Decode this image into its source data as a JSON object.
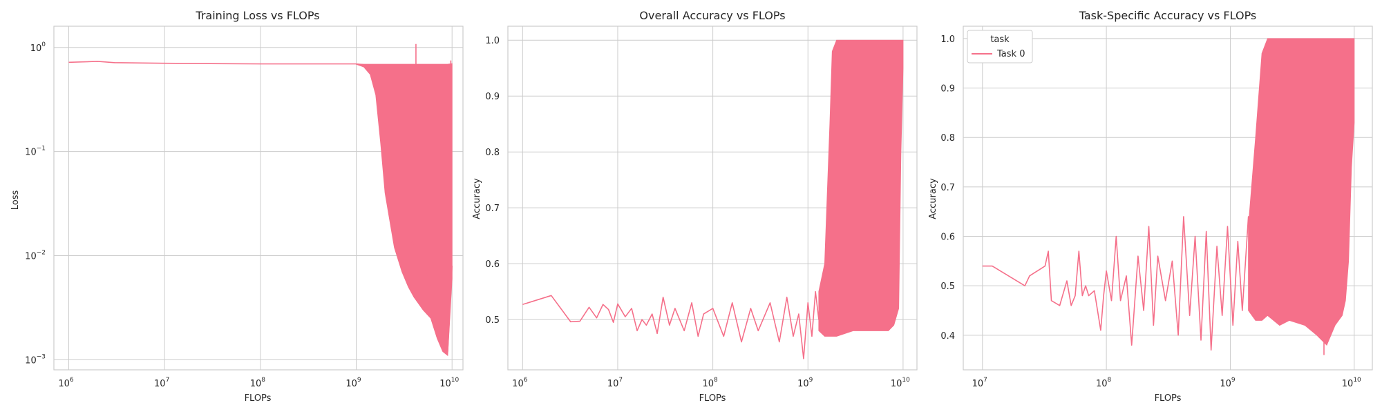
{
  "chart_data": [
    {
      "type": "line",
      "title": "Training Loss vs FLOPs",
      "xlabel": "FLOPs",
      "ylabel": "Loss",
      "xscale": "log",
      "yscale": "log",
      "xlim": [
        700000,
        13000000000
      ],
      "ylim": [
        0.0008,
        1.6
      ],
      "xticks": [
        {
          "value": 1000000,
          "base": "10",
          "exp": "6"
        },
        {
          "value": 10000000,
          "base": "10",
          "exp": "7"
        },
        {
          "value": 100000000,
          "base": "10",
          "exp": "8"
        },
        {
          "value": 1000000000,
          "base": "10",
          "exp": "9"
        },
        {
          "value": 10000000000,
          "base": "10",
          "exp": "10"
        }
      ],
      "yticks": [
        {
          "value": 0.001,
          "base": "10",
          "exp": "−3"
        },
        {
          "value": 0.01,
          "base": "10",
          "exp": "−2"
        },
        {
          "value": 0.1,
          "base": "10",
          "exp": "−1"
        },
        {
          "value": 1,
          "base": "10",
          "exp": "0"
        }
      ],
      "grid": true,
      "color": "#f5708a",
      "series": [
        {
          "x": [
            1000000,
            2000000,
            3000000,
            5000000,
            10000000,
            30000000,
            100000000,
            300000000,
            1000000000,
            1200000000,
            1400000000,
            1600000000,
            2000000000,
            2500000000,
            3000000000,
            4000000000,
            5000000000,
            6000000000,
            7000000000,
            8000000000,
            9000000000,
            10000000000
          ],
          "y": [
            0.72,
            0.735,
            0.715,
            0.71,
            0.705,
            0.7,
            0.695,
            0.695,
            0.695,
            0.68,
            0.62,
            0.42,
            0.18,
            0.06,
            0.025,
            0.012,
            0.008,
            0.005,
            0.003,
            0.0018,
            0.0012,
            0.008
          ]
        }
      ],
      "band": {
        "x": [
          1000000000,
          1200000000,
          1400000000,
          1600000000,
          1800000000,
          2000000000,
          2500000000,
          3000000000,
          3500000000,
          4000000000,
          5000000000,
          6000000000,
          7000000000,
          8000000000,
          9000000000,
          10000000000
        ],
        "ytop": [
          0.695,
          0.69,
          0.69,
          0.69,
          0.69,
          0.69,
          0.69,
          0.69,
          0.69,
          0.69,
          0.69,
          0.69,
          0.69,
          0.69,
          0.69,
          0.7
        ],
        "ybottom": [
          0.69,
          0.65,
          0.55,
          0.35,
          0.12,
          0.04,
          0.012,
          0.007,
          0.005,
          0.004,
          0.003,
          0.0025,
          0.0016,
          0.0012,
          0.0011,
          0.006
        ]
      },
      "spikes": [
        {
          "x": 4200000000,
          "y": 1.08
        },
        {
          "x": 9700000000,
          "y": 0.75
        }
      ]
    },
    {
      "type": "line",
      "title": "Overall Accuracy vs FLOPs",
      "xlabel": "FLOPs",
      "ylabel": "Accuracy",
      "xscale": "log",
      "yscale": "linear",
      "xlim": [
        700000,
        14000000000
      ],
      "ylim": [
        0.41,
        1.025
      ],
      "xticks": [
        {
          "value": 1000000,
          "base": "10",
          "exp": "6"
        },
        {
          "value": 10000000,
          "base": "10",
          "exp": "7"
        },
        {
          "value": 100000000,
          "base": "10",
          "exp": "8"
        },
        {
          "value": 1000000000,
          "base": "10",
          "exp": "9"
        },
        {
          "value": 10000000000,
          "base": "10",
          "exp": "10"
        }
      ],
      "yticks": [
        {
          "value": 0.5,
          "label": "0.5"
        },
        {
          "value": 0.6,
          "label": "0.6"
        },
        {
          "value": 0.7,
          "label": "0.7"
        },
        {
          "value": 0.8,
          "label": "0.8"
        },
        {
          "value": 0.9,
          "label": "0.9"
        },
        {
          "value": 1.0,
          "label": "1.0"
        }
      ],
      "grid": true,
      "color": "#f5708a",
      "series": [
        {
          "x": [
            1000000,
            2000000,
            3200000,
            4000000,
            5000000,
            6000000,
            7000000,
            8000000,
            9000000,
            10000000,
            12000000,
            14000000,
            16000000,
            18000000,
            20000000,
            23000000,
            26000000,
            30000000,
            35000000,
            40000000,
            50000000,
            60000000,
            70000000,
            80000000,
            100000000,
            130000000,
            160000000,
            200000000,
            250000000,
            300000000,
            400000000,
            500000000,
            600000000,
            700000000,
            800000000,
            900000000,
            1000000000,
            1100000000,
            1200000000,
            1300000000
          ],
          "y": [
            0.527,
            0.543,
            0.496,
            0.497,
            0.522,
            0.503,
            0.527,
            0.518,
            0.495,
            0.528,
            0.505,
            0.52,
            0.48,
            0.5,
            0.49,
            0.51,
            0.475,
            0.54,
            0.49,
            0.52,
            0.48,
            0.53,
            0.47,
            0.51,
            0.52,
            0.47,
            0.53,
            0.46,
            0.52,
            0.48,
            0.53,
            0.46,
            0.54,
            0.47,
            0.51,
            0.43,
            0.53,
            0.47,
            0.55,
            0.5
          ]
        }
      ],
      "band": {
        "x": [
          1300000000,
          1500000000,
          1700000000,
          1800000000,
          2000000000,
          3000000000,
          5000000000,
          7000000000,
          8000000000,
          9000000000,
          9500000000,
          10000000000
        ],
        "ytop": [
          0.55,
          0.6,
          0.85,
          0.98,
          1.0,
          1.0,
          1.0,
          1.0,
          1.0,
          1.0,
          1.0,
          1.0
        ],
        "ybottom": [
          0.48,
          0.47,
          0.47,
          0.47,
          0.47,
          0.48,
          0.48,
          0.48,
          0.49,
          0.52,
          0.8,
          0.95
        ]
      }
    },
    {
      "type": "line",
      "title": "Task-Specific Accuracy vs FLOPs",
      "xlabel": "FLOPs",
      "ylabel": "Accuracy",
      "xscale": "log",
      "yscale": "linear",
      "xlim": [
        8000000000,
        14000000000
      ],
      "ylim": [
        0.33,
        1.025
      ],
      "xticks": [
        {
          "value": 10000000,
          "base": "10",
          "exp": "7"
        },
        {
          "value": 100000000,
          "base": "10",
          "exp": "8"
        },
        {
          "value": 1000000000,
          "base": "10",
          "exp": "9"
        },
        {
          "value": 10000000000,
          "base": "10",
          "exp": "10"
        }
      ],
      "yticks": [
        {
          "value": 0.4,
          "label": "0.4"
        },
        {
          "value": 0.5,
          "label": "0.5"
        },
        {
          "value": 0.6,
          "label": "0.6"
        },
        {
          "value": 0.7,
          "label": "0.7"
        },
        {
          "value": 0.8,
          "label": "0.8"
        },
        {
          "value": 0.9,
          "label": "0.9"
        },
        {
          "value": 1.0,
          "label": "1.0"
        }
      ],
      "grid": true,
      "color": "#f5708a",
      "legend": {
        "title": "task",
        "entries": [
          "Task 0"
        ],
        "position": "upper left"
      },
      "series": [
        {
          "name": "Task 0",
          "x": [
            10000000,
            12000000,
            22000000,
            24000000,
            32000000,
            34000000,
            36000000,
            42000000,
            48000000,
            52000000,
            56000000,
            60000000,
            64000000,
            68000000,
            72000000,
            80000000,
            90000000,
            95000000,
            100000000,
            110000000,
            120000000,
            130000000,
            145000000,
            160000000,
            180000000,
            200000000,
            220000000,
            240000000,
            260000000,
            300000000,
            340000000,
            380000000,
            420000000,
            470000000,
            520000000,
            580000000,
            640000000,
            700000000,
            780000000,
            860000000,
            950000000,
            1050000000,
            1150000000,
            1250000000,
            1400000000,
            1550000000
          ],
          "y": [
            0.54,
            0.54,
            0.5,
            0.52,
            0.54,
            0.57,
            0.47,
            0.46,
            0.51,
            0.46,
            0.48,
            0.57,
            0.48,
            0.5,
            0.48,
            0.49,
            0.41,
            0.48,
            0.53,
            0.47,
            0.6,
            0.47,
            0.52,
            0.38,
            0.56,
            0.45,
            0.62,
            0.42,
            0.56,
            0.47,
            0.55,
            0.4,
            0.64,
            0.44,
            0.6,
            0.39,
            0.61,
            0.37,
            0.58,
            0.44,
            0.62,
            0.42,
            0.59,
            0.45,
            0.64,
            0.5
          ]
        }
      ],
      "band": {
        "x": [
          1400000000,
          1600000000,
          1800000000,
          2000000000,
          2500000000,
          3000000000,
          4000000000,
          5000000000,
          6000000000,
          7000000000,
          8000000000,
          8500000000,
          9000000000,
          9500000000,
          10000000000
        ],
        "ytop": [
          0.62,
          0.8,
          0.97,
          1.0,
          1.0,
          1.0,
          1.0,
          1.0,
          1.0,
          1.0,
          1.0,
          1.0,
          1.0,
          1.0,
          1.0
        ],
        "ybottom": [
          0.45,
          0.43,
          0.43,
          0.44,
          0.42,
          0.43,
          0.42,
          0.4,
          0.38,
          0.42,
          0.44,
          0.47,
          0.55,
          0.74,
          0.83
        ]
      },
      "spikes": [
        {
          "x": 5700000000,
          "y": 0.36
        }
      ]
    }
  ]
}
